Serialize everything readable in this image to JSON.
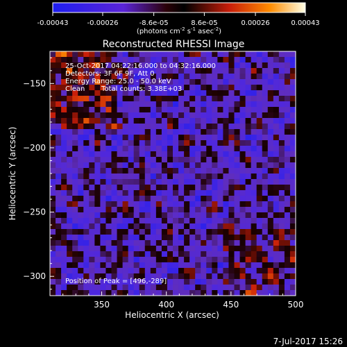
{
  "colorbar": {
    "tick_labels": [
      "-0.00043",
      "-0.00026",
      "-8.6e-05",
      "8.6e-05",
      "0.00026",
      "0.00043"
    ],
    "tick_values": [
      -0.00043,
      -0.00026,
      -8.6e-05,
      8.6e-05,
      0.00026,
      0.00043
    ],
    "range": [
      -0.00043,
      0.00043
    ],
    "units_prefix": "(photons cm",
    "units_exp1": "-2",
    "units_mid": " s",
    "units_exp2": "-1",
    "units_mid2": " asec",
    "units_exp3": "-2",
    "units_suffix": ")",
    "colors": [
      "#1e1ef0",
      "#5a24d8",
      "#2a0008",
      "#000000",
      "#c81e0a",
      "#ff8c00",
      "#ffffe6"
    ]
  },
  "annotations": {
    "time_range": "25-Oct-2017 04:22:16.000 to 04:32:16.000",
    "detectors": "Detectors: 3F 6F 9F, Att 0",
    "energy": "Energy Range: 25.0 - 50.0 keV",
    "clean_label": "Clean",
    "total_counts": "Total counts: 3.38E+03",
    "peak": "Position of Peak = [496,-289]"
  },
  "footer": {
    "timestamp": "7-Jul-2017 15:26"
  },
  "chart_data": {
    "type": "heatmap",
    "title": "Reconstructed RHESSI Image",
    "xlabel": "Heliocentric X (arcsec)",
    "ylabel": "Heliocentric Y (arcsec)",
    "xlim": [
      310,
      500
    ],
    "ylim": [
      -315,
      -125
    ],
    "x_ticks": [
      350,
      400,
      450,
      500
    ],
    "y_ticks": [
      -150,
      -200,
      -250,
      -300
    ],
    "x_tick_labels": [
      "350",
      "400",
      "450",
      "500"
    ],
    "y_tick_labels": [
      "−150",
      "−200",
      "−250",
      "−300"
    ],
    "grid": false,
    "peak_position": [
      496,
      -289
    ]
  }
}
